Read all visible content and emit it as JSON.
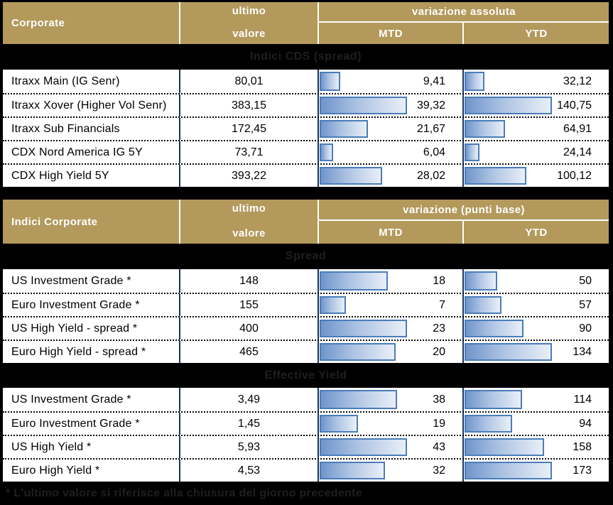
{
  "colors": {
    "gold": "#b3995b",
    "navy": "#17365d",
    "bar_border": "#4a7cba",
    "bar_fill_left": "#7095cb",
    "bar_fill_right": "#e9eff8",
    "band_text": "#1f1f1f",
    "background": "#000000"
  },
  "tables": [
    {
      "header": {
        "title": "Corporate",
        "value_line1": "ultimo",
        "value_line2": "valore",
        "variation_label": "variazione assoluta",
        "mtd_label": "MTD",
        "ytd_label": "YTD"
      },
      "sections": [
        {
          "band": "Indici CDS (spread)",
          "rows": [
            {
              "label": "Itraxx Main (IG Senr)",
              "value": "80,01",
              "mtd": "9,41",
              "ytd": "32,12"
            },
            {
              "label": "Itraxx Xover (Higher Vol Senr)",
              "value": "383,15",
              "mtd": "39,32",
              "ytd": "140,75"
            },
            {
              "label": "Itraxx Sub Financials",
              "value": "172,45",
              "mtd": "21,67",
              "ytd": "64,91"
            },
            {
              "label": "CDX Nord America IG 5Y",
              "value": "73,71",
              "mtd": "6,04",
              "ytd": "24,14"
            },
            {
              "label": "CDX High Yield 5Y",
              "value": "393,22",
              "mtd": "28,02",
              "ytd": "100,12"
            }
          ]
        }
      ]
    },
    {
      "header": {
        "title": "Indici Corporate",
        "value_line1": "ultimo",
        "value_line2": "valore",
        "variation_label": "variazione (punti base)",
        "mtd_label": "MTD",
        "ytd_label": "YTD"
      },
      "sections": [
        {
          "band": "Spread",
          "rows": [
            {
              "label": "US Investment Grade *",
              "value": "148",
              "mtd": "18",
              "ytd": "50"
            },
            {
              "label": "Euro Investment Grade *",
              "value": "155",
              "mtd": "7",
              "ytd": "57"
            },
            {
              "label": "US High Yield  - spread *",
              "value": "400",
              "mtd": "23",
              "ytd": "90"
            },
            {
              "label": "Euro High Yield  - spread *",
              "value": "465",
              "mtd": "20",
              "ytd": "134"
            }
          ]
        },
        {
          "band": "Effective Yield",
          "rows": [
            {
              "label": "US Investment Grade *",
              "value": "3,49",
              "mtd": "38",
              "ytd": "114"
            },
            {
              "label": "Euro Investment Grade *",
              "value": "1,45",
              "mtd": "19",
              "ytd": "94"
            },
            {
              "label": "US High Yield *",
              "value": "5,93",
              "mtd": "43",
              "ytd": "158"
            },
            {
              "label": "Euro High Yield *",
              "value": "4,53",
              "mtd": "32",
              "ytd": "173"
            }
          ]
        }
      ]
    }
  ],
  "footnote": "* L'ultimo valore si riferisce alla chiusura del giorno precedente",
  "chart_data": [
    {
      "type": "table",
      "title": "Corporate - Indici CDS (spread)",
      "columns": [
        "ultimo valore",
        "variazione assoluta MTD",
        "variazione assoluta YTD"
      ],
      "categories": [
        "Itraxx Main (IG Senr)",
        "Itraxx Xover (Higher Vol Senr)",
        "Itraxx Sub Financials",
        "CDX Nord America IG 5Y",
        "CDX High Yield 5Y"
      ],
      "series": [
        {
          "name": "ultimo valore",
          "values": [
            80.01,
            383.15,
            172.45,
            73.71,
            393.22
          ]
        },
        {
          "name": "MTD",
          "values": [
            9.41,
            39.32,
            21.67,
            6.04,
            28.02
          ]
        },
        {
          "name": "YTD",
          "values": [
            32.12,
            140.75,
            64.91,
            24.14,
            100.12
          ]
        }
      ],
      "layout": "MTD and YTD cells contain horizontal data bars scaled to the section/column maximum"
    },
    {
      "type": "table",
      "title": "Indici Corporate - Spread",
      "columns": [
        "ultimo valore",
        "variazione (punti base) MTD",
        "variazione (punti base) YTD"
      ],
      "categories": [
        "US Investment Grade *",
        "Euro Investment Grade *",
        "US High Yield  - spread *",
        "Euro High Yield  - spread *"
      ],
      "series": [
        {
          "name": "ultimo valore",
          "values": [
            148,
            155,
            400,
            465
          ]
        },
        {
          "name": "MTD",
          "values": [
            18,
            7,
            23,
            20
          ]
        },
        {
          "name": "YTD",
          "values": [
            50,
            57,
            90,
            134
          ]
        }
      ],
      "layout": "MTD and YTD cells contain horizontal data bars scaled to the section/column maximum"
    },
    {
      "type": "table",
      "title": "Indici Corporate - Effective Yield",
      "columns": [
        "ultimo valore",
        "variazione (punti base) MTD",
        "variazione (punti base) YTD"
      ],
      "categories": [
        "US Investment Grade *",
        "Euro Investment Grade *",
        "US High Yield *",
        "Euro High Yield *"
      ],
      "series": [
        {
          "name": "ultimo valore",
          "values": [
            3.49,
            1.45,
            5.93,
            4.53
          ]
        },
        {
          "name": "MTD",
          "values": [
            38,
            19,
            43,
            32
          ]
        },
        {
          "name": "YTD",
          "values": [
            114,
            94,
            158,
            173
          ]
        }
      ],
      "layout": "MTD and YTD cells contain horizontal data bars scaled to the section/column maximum"
    }
  ]
}
